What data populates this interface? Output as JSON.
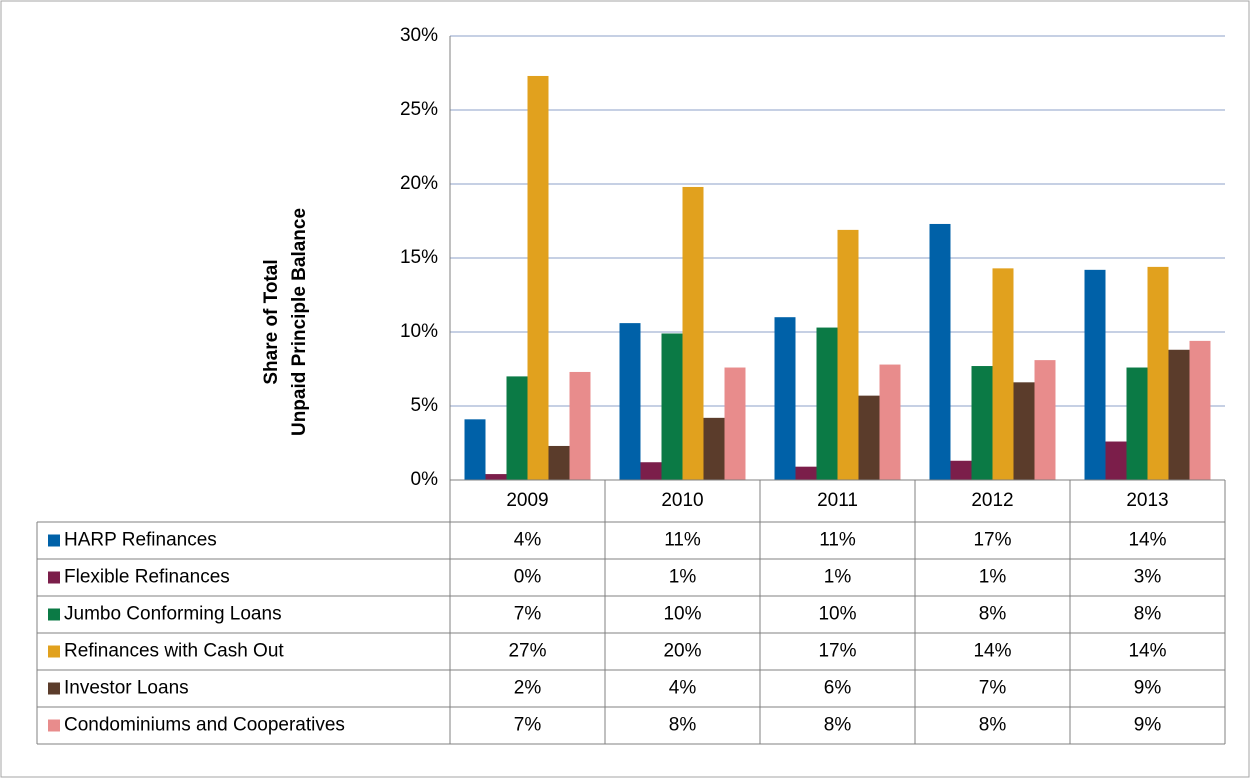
{
  "chart_data": {
    "type": "bar",
    "y_label": [
      "Share of Total",
      "Unpaid Principle Balance"
    ],
    "categories": [
      "2009",
      "2010",
      "2011",
      "2012",
      "2013"
    ],
    "ylim": [
      0,
      30
    ],
    "yticks": [
      {
        "value": 0,
        "label": "0%"
      },
      {
        "value": 5,
        "label": "5%"
      },
      {
        "value": 10,
        "label": "10%"
      },
      {
        "value": 15,
        "label": "15%"
      },
      {
        "value": 20,
        "label": "20%"
      },
      {
        "value": 25,
        "label": "25%"
      },
      {
        "value": 30,
        "label": "30%"
      }
    ],
    "grid": true,
    "series": [
      {
        "name": "HARP Refinances",
        "color": "#0061a8",
        "values": [
          4.1,
          10.6,
          11.0,
          17.3,
          14.2
        ],
        "value_labels": [
          "4%",
          "11%",
          "11%",
          "17%",
          "14%"
        ]
      },
      {
        "name": "Flexible Refinances",
        "color": "#7b1e4a",
        "values": [
          0.4,
          1.2,
          0.9,
          1.3,
          2.6
        ],
        "value_labels": [
          "0%",
          "1%",
          "1%",
          "1%",
          "3%"
        ]
      },
      {
        "name": "Jumbo Conforming Loans",
        "color": "#0b7a45",
        "values": [
          7.0,
          9.9,
          10.3,
          7.7,
          7.6
        ],
        "value_labels": [
          "7%",
          "10%",
          "10%",
          "8%",
          "8%"
        ]
      },
      {
        "name": "Refinances with Cash Out",
        "color": "#e1a11e",
        "values": [
          27.3,
          19.8,
          16.9,
          14.3,
          14.4
        ],
        "value_labels": [
          "27%",
          "20%",
          "17%",
          "14%",
          "14%"
        ]
      },
      {
        "name": "Investor Loans",
        "color": "#5b3c2b",
        "values": [
          2.3,
          4.2,
          5.7,
          6.6,
          8.8
        ],
        "value_labels": [
          "2%",
          "4%",
          "6%",
          "7%",
          "9%"
        ]
      },
      {
        "name": "Condominiums and Cooperatives",
        "color": "#e88c8c",
        "values": [
          7.3,
          7.6,
          7.8,
          8.1,
          9.4
        ],
        "value_labels": [
          "7%",
          "8%",
          "8%",
          "8%",
          "9%"
        ]
      }
    ]
  }
}
